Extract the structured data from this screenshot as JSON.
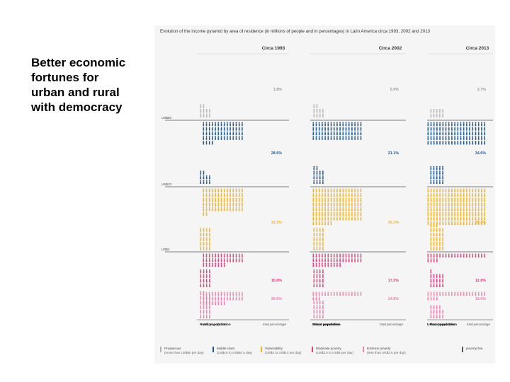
{
  "slide": {
    "text": "Better economic\nfortunes for\nurban and rural\nwith democracy"
  },
  "chart_data": {
    "type": "pictogram",
    "title": "Evolution of the income pyramid by area of residence (in millions of people and in percentages) in Latin America circa 1993, 2002 and 2013",
    "periods": [
      "Circa 1993",
      "Circa 2002",
      "Circa 2013"
    ],
    "thresholds": [
      "US$50",
      "US$10",
      "US$4"
    ],
    "column_labels": {
      "rural": "Rural population",
      "urban": "Urban population",
      "total": "total percentage"
    },
    "bands": [
      {
        "name": "Prosperous",
        "color": "#b6b6b6",
        "rural": [
          10,
          10,
          10
        ],
        "urban": [
          0,
          0,
          0
        ]
      },
      {
        "name": "Middle class",
        "color": "#1f5b92",
        "rural": [
          10,
          14,
          20
        ],
        "urban": [
          60,
          68,
          100
        ]
      },
      {
        "name": "Vulnerability",
        "color": "#f2b325",
        "rural": [
          20,
          20,
          28
        ],
        "urban": [
          72,
          126,
          160
        ]
      },
      {
        "name": "Moderate poverty",
        "color": "#e0407e",
        "rural": [
          16,
          16,
          16
        ],
        "urban": [
          36,
          44,
          24
        ]
      },
      {
        "name": "Extreme poverty",
        "color": "#f27fb0",
        "rural": [
          22,
          16,
          14
        ],
        "urban": [
          36,
          20,
          24
        ]
      }
    ],
    "percent_labels": [
      [
        "1.8%",
        "28.6%",
        "31.3%",
        "15.8%",
        "20.6%"
      ],
      [
        "5.9%",
        "21.1%",
        "35.1%",
        "17.2%",
        "24.8%"
      ],
      [
        "2.7%",
        "34.6%",
        "38.4%",
        "12.8%",
        "13.9%"
      ]
    ],
    "legend": [
      {
        "label": "Prosperous",
        "sub": "(more than US$50 per day)",
        "color": "#b6b6b6"
      },
      {
        "label": "Middle class",
        "sub": "(US$10 to US$50 a day)",
        "color": "#1f5b92"
      },
      {
        "label": "Vulnerability",
        "sub": "(US$4 to US$10 per day)",
        "color": "#f2b325"
      },
      {
        "label": "Moderate poverty",
        "sub": "(US$2.5 to US$4 per day)",
        "color": "#e0407e"
      },
      {
        "label": "Extreme poverty",
        "sub": "(less than US$2.5 per day)",
        "color": "#f27fb0"
      },
      {
        "label": "poverty line",
        "sub": "",
        "color": "#555555"
      }
    ]
  }
}
